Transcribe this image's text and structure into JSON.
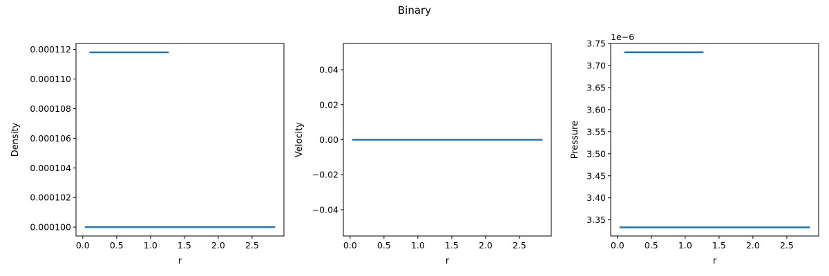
{
  "figure": {
    "title": "Binary"
  },
  "chart_data": [
    {
      "type": "line",
      "xlabel": "r",
      "ylabel": "Density",
      "xlim": [
        -0.1,
        2.97
      ],
      "ylim": [
        9.94e-05,
        0.0001124
      ],
      "xticks": [
        0.0,
        0.5,
        1.0,
        1.5,
        2.0,
        2.5
      ],
      "xtick_labels": [
        "0.0",
        "0.5",
        "1.0",
        "1.5",
        "2.0",
        "2.5"
      ],
      "yticks": [
        0.0001,
        0.000102,
        0.000104,
        0.000106,
        0.000108,
        0.00011,
        0.000112
      ],
      "ytick_labels": [
        "0.000100",
        "0.000102",
        "0.000104",
        "0.000106",
        "0.000108",
        "0.000110",
        "0.000112"
      ],
      "offset_label": "",
      "series": [
        {
          "color": "#1f77b4",
          "x": [
            0.1,
            1.27
          ],
          "y": [
            0.0001118,
            0.0001118
          ]
        },
        {
          "color": "#1f77b4",
          "x": [
            0.03,
            2.84
          ],
          "y": [
            0.0001,
            0.0001
          ]
        }
      ]
    },
    {
      "type": "line",
      "xlabel": "r",
      "ylabel": "Velocity",
      "xlim": [
        -0.1,
        2.97
      ],
      "ylim": [
        -0.055,
        0.055
      ],
      "xticks": [
        0.0,
        0.5,
        1.0,
        1.5,
        2.0,
        2.5
      ],
      "xtick_labels": [
        "0.0",
        "0.5",
        "1.0",
        "1.5",
        "2.0",
        "2.5"
      ],
      "yticks": [
        -0.04,
        -0.02,
        0.0,
        0.02,
        0.04
      ],
      "ytick_labels": [
        "−0.04",
        "−0.02",
        "0.00",
        "0.02",
        "0.04"
      ],
      "offset_label": "",
      "series": [
        {
          "color": "#1f77b4",
          "x": [
            0.03,
            2.84
          ],
          "y": [
            0.0,
            0.0
          ]
        }
      ]
    },
    {
      "type": "line",
      "xlabel": "r",
      "ylabel": "Pressure",
      "xlim": [
        -0.1,
        2.97
      ],
      "ylim": [
        3.3135,
        3.75
      ],
      "xticks": [
        0.0,
        0.5,
        1.0,
        1.5,
        2.0,
        2.5
      ],
      "xtick_labels": [
        "0.0",
        "0.5",
        "1.0",
        "1.5",
        "2.0",
        "2.5"
      ],
      "yticks": [
        3.35,
        3.4,
        3.45,
        3.5,
        3.55,
        3.6,
        3.65,
        3.7,
        3.75
      ],
      "ytick_labels": [
        "3.35",
        "3.40",
        "3.45",
        "3.50",
        "3.55",
        "3.60",
        "3.65",
        "3.70",
        "3.75"
      ],
      "offset_label": "1e−6",
      "series": [
        {
          "color": "#1f77b4",
          "x": [
            0.1,
            1.27
          ],
          "y": [
            3.73,
            3.73
          ]
        },
        {
          "color": "#1f77b4",
          "x": [
            0.03,
            2.84
          ],
          "y": [
            3.333,
            3.333
          ]
        }
      ]
    }
  ]
}
